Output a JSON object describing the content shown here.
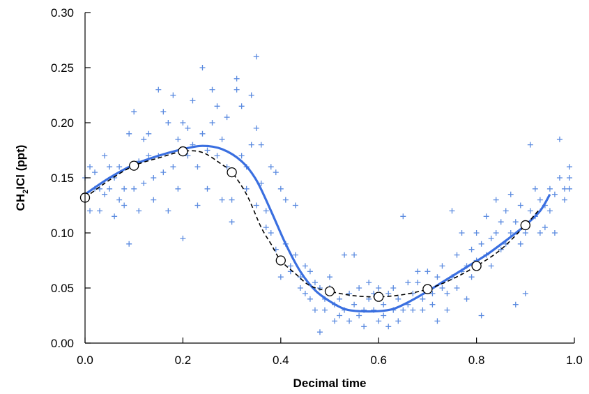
{
  "chart_data": {
    "type": "scatter",
    "xlabel": "Decimal time",
    "ylabel_parts": [
      "CH",
      "2",
      "ICl (ppt)"
    ],
    "xlim": [
      0.0,
      1.0
    ],
    "ylim": [
      0.0,
      0.3
    ],
    "x_ticks": [
      "0.0",
      "0.2",
      "0.4",
      "0.6",
      "0.8",
      "1.0"
    ],
    "y_ticks": [
      "0.00",
      "0.05",
      "0.10",
      "0.15",
      "0.20",
      "0.25",
      "0.30"
    ],
    "grid": false,
    "colors": {
      "scatter": "#5b8be0",
      "fit": "#3a6fe0",
      "dashed": "#000000",
      "marker_fill": "#ffffff"
    },
    "series": [
      {
        "kind": "scatter",
        "marker": "plus",
        "points": [
          [
            0.0,
            0.15
          ],
          [
            0.0,
            0.13
          ],
          [
            0.01,
            0.16
          ],
          [
            0.01,
            0.12
          ],
          [
            0.02,
            0.14
          ],
          [
            0.02,
            0.155
          ],
          [
            0.03,
            0.14
          ],
          [
            0.03,
            0.12
          ],
          [
            0.04,
            0.17
          ],
          [
            0.04,
            0.135
          ],
          [
            0.05,
            0.14
          ],
          [
            0.05,
            0.16
          ],
          [
            0.06,
            0.115
          ],
          [
            0.06,
            0.15
          ],
          [
            0.07,
            0.13
          ],
          [
            0.07,
            0.16
          ],
          [
            0.08,
            0.14
          ],
          [
            0.08,
            0.125
          ],
          [
            0.09,
            0.19
          ],
          [
            0.09,
            0.09
          ],
          [
            0.1,
            0.21
          ],
          [
            0.1,
            0.16
          ],
          [
            0.1,
            0.14
          ],
          [
            0.11,
            0.12
          ],
          [
            0.11,
            0.165
          ],
          [
            0.12,
            0.185
          ],
          [
            0.12,
            0.145
          ],
          [
            0.13,
            0.17
          ],
          [
            0.13,
            0.19
          ],
          [
            0.14,
            0.15
          ],
          [
            0.14,
            0.13
          ],
          [
            0.15,
            0.23
          ],
          [
            0.15,
            0.17
          ],
          [
            0.16,
            0.21
          ],
          [
            0.16,
            0.155
          ],
          [
            0.17,
            0.2
          ],
          [
            0.17,
            0.12
          ],
          [
            0.18,
            0.225
          ],
          [
            0.18,
            0.16
          ],
          [
            0.19,
            0.185
          ],
          [
            0.19,
            0.14
          ],
          [
            0.2,
            0.2
          ],
          [
            0.2,
            0.095
          ],
          [
            0.21,
            0.195
          ],
          [
            0.21,
            0.17
          ],
          [
            0.22,
            0.22
          ],
          [
            0.22,
            0.18
          ],
          [
            0.23,
            0.16
          ],
          [
            0.23,
            0.125
          ],
          [
            0.24,
            0.25
          ],
          [
            0.24,
            0.19
          ],
          [
            0.25,
            0.175
          ],
          [
            0.25,
            0.14
          ],
          [
            0.26,
            0.23
          ],
          [
            0.26,
            0.2
          ],
          [
            0.27,
            0.215
          ],
          [
            0.27,
            0.17
          ],
          [
            0.28,
            0.185
          ],
          [
            0.28,
            0.13
          ],
          [
            0.29,
            0.16
          ],
          [
            0.29,
            0.205
          ],
          [
            0.3,
            0.11
          ],
          [
            0.3,
            0.13
          ],
          [
            0.31,
            0.23
          ],
          [
            0.31,
            0.24
          ],
          [
            0.32,
            0.215
          ],
          [
            0.32,
            0.17
          ],
          [
            0.33,
            0.14
          ],
          [
            0.33,
            0.16
          ],
          [
            0.34,
            0.225
          ],
          [
            0.34,
            0.18
          ],
          [
            0.35,
            0.195
          ],
          [
            0.35,
            0.125
          ],
          [
            0.35,
            0.26
          ],
          [
            0.36,
            0.18
          ],
          [
            0.36,
            0.145
          ],
          [
            0.37,
            0.12
          ],
          [
            0.37,
            0.105
          ],
          [
            0.38,
            0.16
          ],
          [
            0.38,
            0.1
          ],
          [
            0.39,
            0.155
          ],
          [
            0.39,
            0.085
          ],
          [
            0.4,
            0.14
          ],
          [
            0.4,
            0.075
          ],
          [
            0.4,
            0.06
          ],
          [
            0.41,
            0.13
          ],
          [
            0.41,
            0.09
          ],
          [
            0.42,
            0.07
          ],
          [
            0.42,
            0.065
          ],
          [
            0.43,
            0.125
          ],
          [
            0.43,
            0.08
          ],
          [
            0.44,
            0.06
          ],
          [
            0.44,
            0.05
          ],
          [
            0.45,
            0.045
          ],
          [
            0.45,
            0.07
          ],
          [
            0.46,
            0.065
          ],
          [
            0.46,
            0.04
          ],
          [
            0.47,
            0.055
          ],
          [
            0.47,
            0.03
          ],
          [
            0.48,
            0.05
          ],
          [
            0.48,
            0.01
          ],
          [
            0.49,
            0.04
          ],
          [
            0.49,
            0.03
          ],
          [
            0.5,
            0.05
          ],
          [
            0.5,
            0.06
          ],
          [
            0.51,
            0.035
          ],
          [
            0.51,
            0.02
          ],
          [
            0.52,
            0.04
          ],
          [
            0.52,
            0.025
          ],
          [
            0.53,
            0.03
          ],
          [
            0.53,
            0.08
          ],
          [
            0.54,
            0.045
          ],
          [
            0.54,
            0.02
          ],
          [
            0.55,
            0.035
          ],
          [
            0.55,
            0.08
          ],
          [
            0.56,
            0.025
          ],
          [
            0.56,
            0.05
          ],
          [
            0.57,
            0.03
          ],
          [
            0.57,
            0.015
          ],
          [
            0.58,
            0.04
          ],
          [
            0.58,
            0.055
          ],
          [
            0.59,
            0.03
          ],
          [
            0.59,
            0.045
          ],
          [
            0.6,
            0.02
          ],
          [
            0.6,
            0.05
          ],
          [
            0.61,
            0.035
          ],
          [
            0.61,
            0.025
          ],
          [
            0.62,
            0.045
          ],
          [
            0.62,
            0.015
          ],
          [
            0.63,
            0.03
          ],
          [
            0.63,
            0.05
          ],
          [
            0.64,
            0.02
          ],
          [
            0.64,
            0.04
          ],
          [
            0.65,
            0.03
          ],
          [
            0.65,
            0.115
          ],
          [
            0.66,
            0.035
          ],
          [
            0.66,
            0.055
          ],
          [
            0.67,
            0.045
          ],
          [
            0.67,
            0.03
          ],
          [
            0.68,
            0.055
          ],
          [
            0.68,
            0.065
          ],
          [
            0.69,
            0.04
          ],
          [
            0.69,
            0.03
          ],
          [
            0.7,
            0.05
          ],
          [
            0.7,
            0.065
          ],
          [
            0.71,
            0.035
          ],
          [
            0.71,
            0.045
          ],
          [
            0.72,
            0.06
          ],
          [
            0.72,
            0.02
          ],
          [
            0.73,
            0.05
          ],
          [
            0.73,
            0.07
          ],
          [
            0.74,
            0.045
          ],
          [
            0.74,
            0.03
          ],
          [
            0.75,
            0.12
          ],
          [
            0.75,
            0.06
          ],
          [
            0.76,
            0.08
          ],
          [
            0.76,
            0.05
          ],
          [
            0.77,
            0.065
          ],
          [
            0.77,
            0.1
          ],
          [
            0.78,
            0.07
          ],
          [
            0.78,
            0.04
          ],
          [
            0.79,
            0.085
          ],
          [
            0.79,
            0.06
          ],
          [
            0.8,
            0.075
          ],
          [
            0.8,
            0.1
          ],
          [
            0.81,
            0.09
          ],
          [
            0.81,
            0.025
          ],
          [
            0.82,
            0.08
          ],
          [
            0.82,
            0.115
          ],
          [
            0.83,
            0.07
          ],
          [
            0.83,
            0.095
          ],
          [
            0.84,
            0.1
          ],
          [
            0.84,
            0.13
          ],
          [
            0.85,
            0.085
          ],
          [
            0.85,
            0.11
          ],
          [
            0.86,
            0.12
          ],
          [
            0.86,
            0.09
          ],
          [
            0.87,
            0.1
          ],
          [
            0.87,
            0.135
          ],
          [
            0.88,
            0.11
          ],
          [
            0.88,
            0.035
          ],
          [
            0.89,
            0.09
          ],
          [
            0.89,
            0.125
          ],
          [
            0.9,
            0.1
          ],
          [
            0.9,
            0.045
          ],
          [
            0.91,
            0.12
          ],
          [
            0.91,
            0.18
          ],
          [
            0.92,
            0.14
          ],
          [
            0.92,
            0.115
          ],
          [
            0.93,
            0.1
          ],
          [
            0.93,
            0.13
          ],
          [
            0.94,
            0.125
          ],
          [
            0.94,
            0.105
          ],
          [
            0.95,
            0.14
          ],
          [
            0.95,
            0.12
          ],
          [
            0.96,
            0.135
          ],
          [
            0.96,
            0.1
          ],
          [
            0.97,
            0.185
          ],
          [
            0.97,
            0.15
          ],
          [
            0.98,
            0.14
          ],
          [
            0.98,
            0.13
          ],
          [
            0.99,
            0.16
          ],
          [
            0.99,
            0.15
          ],
          [
            0.99,
            0.14
          ]
        ]
      },
      {
        "kind": "line",
        "style": "solid",
        "points": [
          [
            0.0,
            0.135
          ],
          [
            0.05,
            0.15
          ],
          [
            0.1,
            0.162
          ],
          [
            0.15,
            0.17
          ],
          [
            0.2,
            0.176
          ],
          [
            0.24,
            0.179
          ],
          [
            0.28,
            0.176
          ],
          [
            0.32,
            0.165
          ],
          [
            0.35,
            0.148
          ],
          [
            0.38,
            0.12
          ],
          [
            0.41,
            0.09
          ],
          [
            0.44,
            0.065
          ],
          [
            0.47,
            0.048
          ],
          [
            0.5,
            0.038
          ],
          [
            0.53,
            0.031
          ],
          [
            0.56,
            0.029
          ],
          [
            0.6,
            0.029
          ],
          [
            0.63,
            0.031
          ],
          [
            0.66,
            0.037
          ],
          [
            0.7,
            0.047
          ],
          [
            0.74,
            0.058
          ],
          [
            0.78,
            0.069
          ],
          [
            0.82,
            0.08
          ],
          [
            0.86,
            0.093
          ],
          [
            0.9,
            0.107
          ],
          [
            0.93,
            0.12
          ],
          [
            0.95,
            0.135
          ]
        ]
      },
      {
        "kind": "line",
        "style": "dashed",
        "points": [
          [
            0.0,
            0.132
          ],
          [
            0.05,
            0.148
          ],
          [
            0.1,
            0.161
          ],
          [
            0.15,
            0.168
          ],
          [
            0.2,
            0.174
          ],
          [
            0.24,
            0.173
          ],
          [
            0.28,
            0.162
          ],
          [
            0.3,
            0.155
          ],
          [
            0.33,
            0.135
          ],
          [
            0.36,
            0.105
          ],
          [
            0.38,
            0.09
          ],
          [
            0.4,
            0.075
          ],
          [
            0.43,
            0.063
          ],
          [
            0.46,
            0.052
          ],
          [
            0.5,
            0.047
          ],
          [
            0.55,
            0.043
          ],
          [
            0.6,
            0.042
          ],
          [
            0.65,
            0.044
          ],
          [
            0.7,
            0.049
          ],
          [
            0.75,
            0.058
          ],
          [
            0.8,
            0.07
          ],
          [
            0.85,
            0.085
          ],
          [
            0.9,
            0.107
          ],
          [
            0.93,
            0.122
          ]
        ]
      },
      {
        "kind": "markers",
        "marker": "open-circle",
        "points": [
          [
            0.0,
            0.132
          ],
          [
            0.1,
            0.161
          ],
          [
            0.2,
            0.174
          ],
          [
            0.3,
            0.155
          ],
          [
            0.4,
            0.075
          ],
          [
            0.5,
            0.047
          ],
          [
            0.6,
            0.042
          ],
          [
            0.7,
            0.049
          ],
          [
            0.8,
            0.07
          ],
          [
            0.9,
            0.107
          ]
        ]
      }
    ]
  }
}
